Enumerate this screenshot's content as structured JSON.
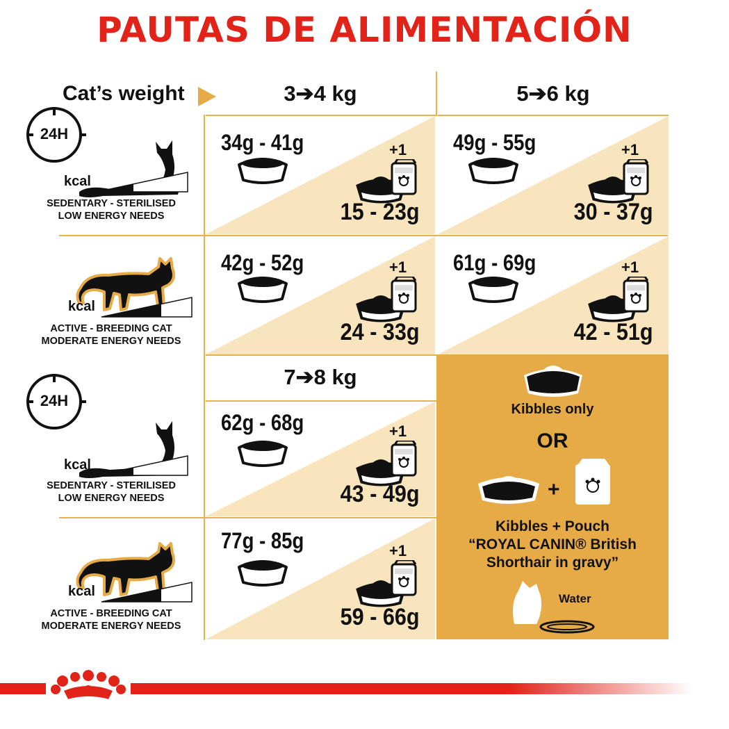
{
  "title": "PAUTAS DE ALIMENTACIÓN",
  "header": {
    "cats_weight": "Cat’s weight",
    "weight_a": "3➔4 kg",
    "weight_b": "5➔6 kg",
    "weight_c": "7➔8 kg"
  },
  "clock_label": "24H",
  "kcal_label": "kcal",
  "plus_one": "+1",
  "profiles": {
    "sedentary": {
      "line1": "SEDENTARY - STERILISED",
      "line2": "LOW ENERGY NEEDS"
    },
    "active": {
      "line1": "ACTIVE - BREEDING CAT",
      "line2": "MODERATE ENERGY NEEDS"
    }
  },
  "cells": {
    "sed_34": {
      "kibbles": "34g - 41g",
      "mix": "15 - 23g"
    },
    "sed_56": {
      "kibbles": "49g - 55g",
      "mix": "30 - 37g"
    },
    "act_34": {
      "kibbles": "42g - 52g",
      "mix": "24 - 33g"
    },
    "act_56": {
      "kibbles": "61g - 69g",
      "mix": "42 - 51g"
    },
    "sed_78": {
      "kibbles": "62g - 68g",
      "mix": "43 - 49g"
    },
    "act_78": {
      "kibbles": "77g - 85g",
      "mix": "59 - 66g"
    }
  },
  "legend": {
    "kibbles_only": "Kibbles only",
    "or": "OR",
    "plus": "+",
    "line1": "Kibbles + Pouch",
    "line2": "“ROYAL CANIN® British",
    "line3": "Shorthair in gravy”",
    "water": "Water"
  },
  "colors": {
    "title_red": "#e2231a",
    "accent_gold": "#e6ab46",
    "cream": "#f8e4bd",
    "brand_red": "#e2231a"
  }
}
